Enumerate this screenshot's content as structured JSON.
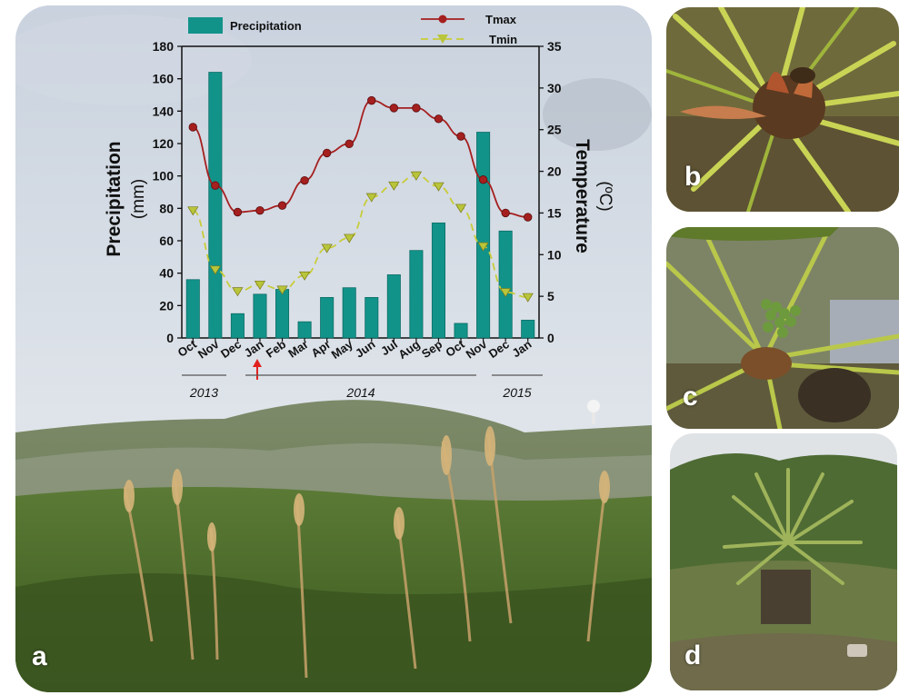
{
  "panels": {
    "a": "a",
    "b": "b",
    "c": "c",
    "d": "d"
  },
  "colors": {
    "bar": "#12938a",
    "bar_edge": "#0d6e67",
    "tmax": "#a51f1f",
    "tmin_line": "#c8cc39",
    "tmin_marker": "#b9c53a",
    "arrow": "#e0201f"
  },
  "chart_data": {
    "type": "bar",
    "title": "",
    "categories": [
      "Oct",
      "Nov",
      "Dec",
      "Jan",
      "Feb",
      "Mar",
      "Apr",
      "May",
      "Jun",
      "Jul",
      "Aug",
      "Sep",
      "Oct",
      "Nov",
      "Dec",
      "Jan"
    ],
    "years": [
      {
        "label": "2013",
        "from": 0,
        "to": 2
      },
      {
        "label": "2014",
        "from": 3,
        "to": 14
      },
      {
        "label": "2015",
        "from": 15,
        "to": 15
      }
    ],
    "ylabel_left": "Precipitation",
    "ylabel_left_unit": "(mm)",
    "ylabel_right": "Temperature",
    "ylabel_right_unit": "(ºC)",
    "ylim_left": [
      0,
      180
    ],
    "yticks_left": [
      0,
      20,
      40,
      60,
      80,
      100,
      120,
      140,
      160,
      180
    ],
    "ylim_right": [
      0,
      35
    ],
    "yticks_right": [
      0,
      5,
      10,
      15,
      20,
      25,
      30,
      35
    ],
    "arrow_at_category": 3,
    "series": [
      {
        "name": "Precipitation",
        "kind": "bar",
        "axis": "left",
        "values": [
          36,
          164,
          15,
          27,
          30,
          10,
          25,
          31,
          25,
          39,
          54,
          71,
          9,
          127,
          66,
          11
        ]
      },
      {
        "name": "Tmax",
        "kind": "line",
        "axis": "right",
        "marker": "circle",
        "values": [
          25.3,
          18.3,
          15.1,
          15.3,
          15.9,
          18.9,
          22.2,
          23.3,
          28.5,
          27.6,
          27.6,
          26.3,
          24.2,
          19.0,
          15.0,
          14.5
        ]
      },
      {
        "name": "Tmin",
        "kind": "line",
        "axis": "right",
        "marker": "triangle-down",
        "dashed": true,
        "values": [
          15.3,
          8.2,
          5.6,
          6.4,
          5.8,
          7.5,
          10.8,
          12.0,
          16.9,
          18.3,
          19.5,
          18.2,
          15.6,
          11.0,
          5.5,
          4.9
        ]
      }
    ]
  }
}
